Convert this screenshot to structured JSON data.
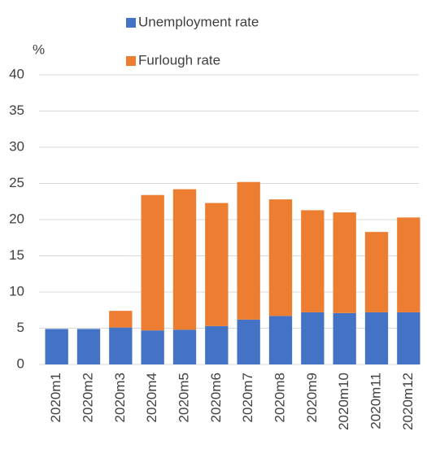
{
  "chart_data": {
    "type": "stacked_bar",
    "y_label": "%",
    "categories": [
      "2020m1",
      "2020m2",
      "2020m3",
      "2020m4",
      "2020m5",
      "2020m6",
      "2020m7",
      "2020m8",
      "2020m9",
      "2020m10",
      "2020m11",
      "2020m12"
    ],
    "series": [
      {
        "name": "Unemployment rate",
        "color": "#4472c4",
        "values": [
          4.9,
          4.9,
          5.1,
          4.7,
          4.8,
          5.3,
          6.2,
          6.7,
          7.2,
          7.1,
          7.2,
          7.2
        ]
      },
      {
        "name": "Furlough rate",
        "color": "#ed7d31",
        "values": [
          0,
          0,
          2.3,
          18.7,
          19.4,
          17.0,
          19.0,
          16.1,
          14.1,
          13.9,
          11.1,
          13.1
        ]
      }
    ],
    "ylim": [
      0,
      40
    ],
    "yticks": [
      0,
      5,
      10,
      15,
      20,
      25,
      30,
      35,
      40
    ],
    "grid": true
  }
}
